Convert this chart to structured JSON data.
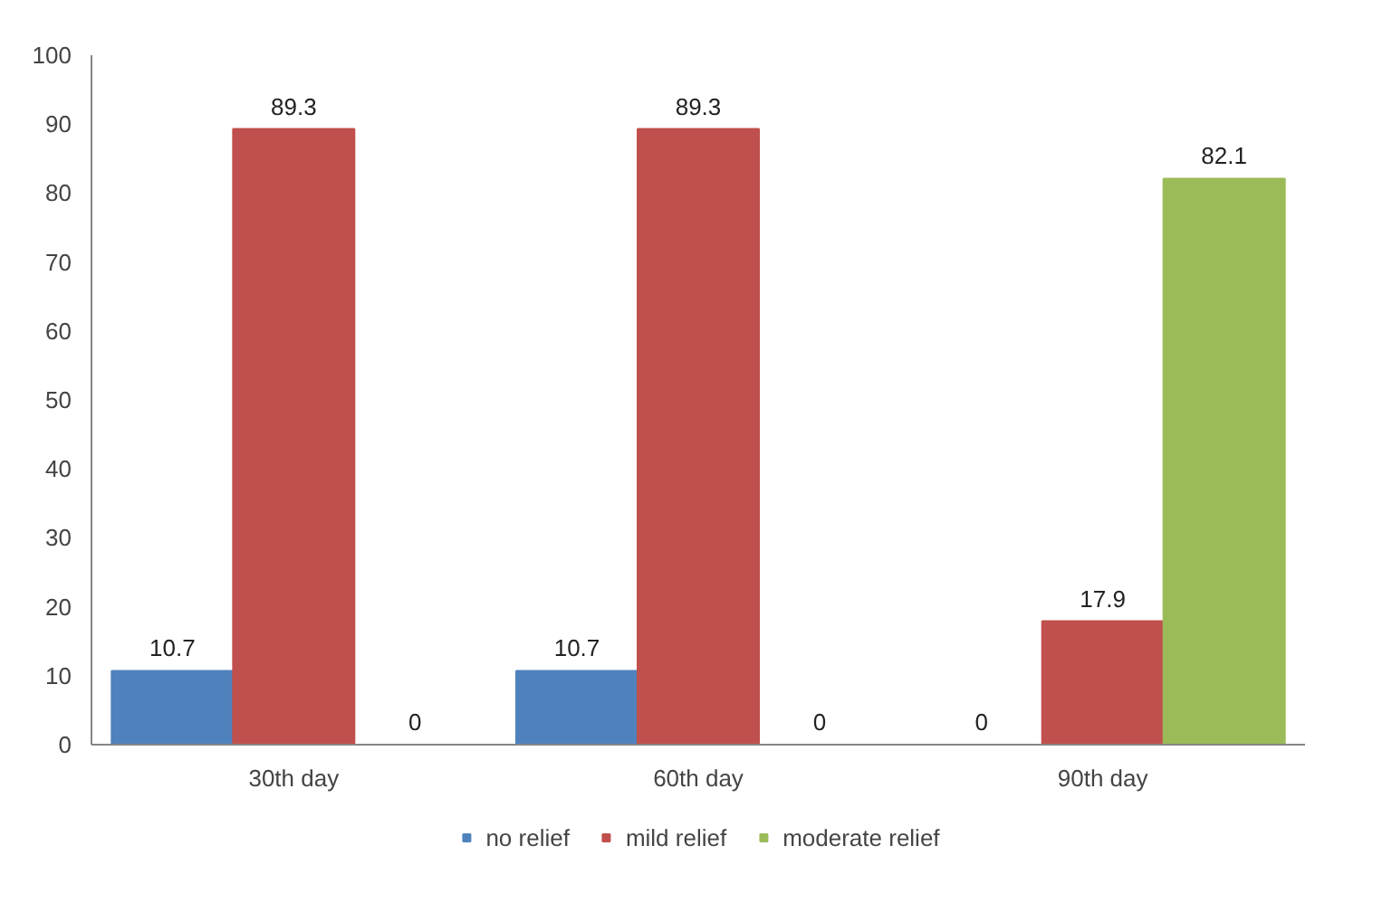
{
  "chart_data": {
    "type": "bar",
    "categories": [
      "30th day",
      "60th day",
      "90th day"
    ],
    "series": [
      {
        "name": "no relief",
        "color": "#4f81bd",
        "values": [
          10.7,
          10.7,
          0
        ]
      },
      {
        "name": "mild relief",
        "color": "#c0504d",
        "values": [
          89.3,
          89.3,
          17.9
        ]
      },
      {
        "name": "moderate relief",
        "color": "#9bbb59",
        "values": [
          0,
          0,
          82.1
        ]
      }
    ],
    "ylim": [
      0,
      100
    ],
    "yticks": [
      0,
      10,
      20,
      30,
      40,
      50,
      60,
      70,
      80,
      90,
      100
    ],
    "grid": false,
    "legend": "bottom",
    "data_labels": true
  }
}
